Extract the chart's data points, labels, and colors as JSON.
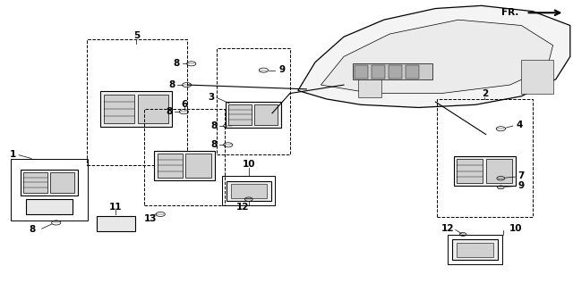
{
  "bg_color": "#ffffff",
  "line_color": "#000000",
  "fig_width": 6.4,
  "fig_height": 3.17
}
